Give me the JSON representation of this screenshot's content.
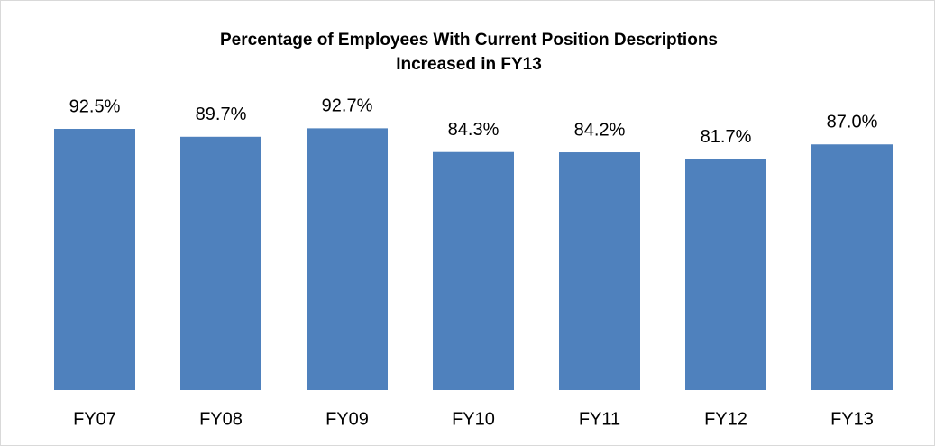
{
  "chart_data": {
    "type": "bar",
    "title": [
      "Percentage of Employees With Current Position Descriptions",
      "Increased in FY13"
    ],
    "categories": [
      "FY07",
      "FY08",
      "FY09",
      "FY10",
      "FY11",
      "FY12",
      "FY13"
    ],
    "values": [
      92.5,
      89.7,
      92.7,
      84.3,
      84.2,
      81.7,
      87.0
    ],
    "value_labels": [
      "92.5%",
      "89.7%",
      "92.7%",
      "84.3%",
      "84.2%",
      "81.7%",
      "87.0%"
    ],
    "color": "#4f81bd",
    "ylim": [
      0,
      100
    ]
  }
}
